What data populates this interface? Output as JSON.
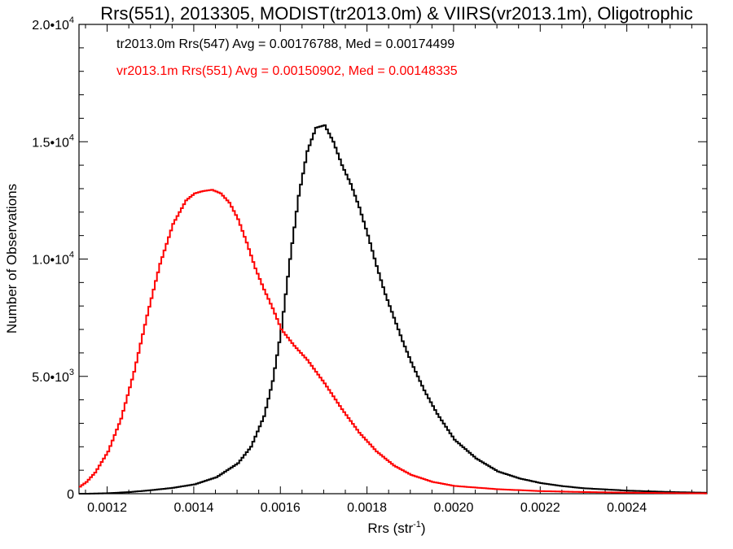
{
  "chart_data": {
    "type": "line",
    "title": "Rrs(551), 2013305, MODIST(tr2013.0m) & VIIRS(vr2013.1m), Oligotrophic",
    "xlabel": "Rrs (str",
    "xlabel_sup": "-1",
    "xlabel_tail": ")",
    "ylabel": "Number of Observations",
    "xlim": [
      0.001135,
      0.002585
    ],
    "ylim": [
      0,
      20000
    ],
    "x_ticks": [
      {
        "value": 0.0012,
        "label": "0.0012"
      },
      {
        "value": 0.0014,
        "label": "0.0014"
      },
      {
        "value": 0.0016,
        "label": "0.0016"
      },
      {
        "value": 0.0018,
        "label": "0.0018"
      },
      {
        "value": 0.002,
        "label": "0.0020"
      },
      {
        "value": 0.0022,
        "label": "0.0022"
      },
      {
        "value": 0.0024,
        "label": "0.0024"
      }
    ],
    "y_ticks": [
      {
        "value": 0,
        "mant": "0",
        "exp": ""
      },
      {
        "value": 5000,
        "mant": "5.0•10",
        "exp": "3"
      },
      {
        "value": 10000,
        "mant": "1.0•10",
        "exp": "4"
      },
      {
        "value": 15000,
        "mant": "1.5•10",
        "exp": "4"
      },
      {
        "value": 20000,
        "mant": "2.0•10",
        "exp": "4"
      }
    ],
    "annotations": [
      {
        "text": "tr2013.0m Rrs(547) Avg = 0.00176788, Med = 0.00174499",
        "color": "#000000"
      },
      {
        "text": "vr2013.1m Rrs(551) Avg = 0.00150902, Med = 0.00148335",
        "color": "#ff0000"
      }
    ],
    "grid": false,
    "series": [
      {
        "color": "#000000",
        "x": [
          0.00115,
          0.0012,
          0.00125,
          0.0013,
          0.00135,
          0.0014,
          0.00145,
          0.0015,
          0.00153,
          0.00156,
          0.00158,
          0.0016,
          0.00162,
          0.00164,
          0.00166,
          0.00168,
          0.0017,
          0.00172,
          0.00174,
          0.00176,
          0.00178,
          0.0018,
          0.00182,
          0.00184,
          0.00186,
          0.00188,
          0.0019,
          0.00193,
          0.00196,
          0.002,
          0.00205,
          0.0021,
          0.00215,
          0.0022,
          0.00225,
          0.0023,
          0.0024,
          0.0025,
          0.00258
        ],
        "values": [
          0,
          20,
          70,
          150,
          250,
          400,
          700,
          1300,
          2000,
          3300,
          4800,
          7000,
          10000,
          12700,
          14600,
          15600,
          15700,
          15000,
          14000,
          13200,
          12200,
          11000,
          9700,
          8500,
          7500,
          6500,
          5600,
          4400,
          3400,
          2300,
          1500,
          950,
          650,
          450,
          320,
          230,
          130,
          70,
          40
        ]
      },
      {
        "color": "#ff0000",
        "x": [
          0.001135,
          0.00115,
          0.00117,
          0.0012,
          0.00123,
          0.00126,
          0.00129,
          0.00132,
          0.00135,
          0.00138,
          0.0014,
          0.00142,
          0.00144,
          0.00146,
          0.00148,
          0.0015,
          0.00152,
          0.00154,
          0.00156,
          0.00158,
          0.0016,
          0.00163,
          0.00166,
          0.0017,
          0.00174,
          0.00178,
          0.00182,
          0.00186,
          0.0019,
          0.00195,
          0.002,
          0.0021,
          0.0022,
          0.0023,
          0.0024,
          0.0025,
          0.00258
        ],
        "values": [
          300,
          500,
          900,
          1800,
          3200,
          5200,
          7600,
          9800,
          11500,
          12500,
          12800,
          12900,
          12950,
          12800,
          12400,
          11700,
          10700,
          9600,
          8700,
          7900,
          7000,
          6300,
          5700,
          4700,
          3600,
          2600,
          1800,
          1200,
          800,
          500,
          330,
          190,
          110,
          70,
          45,
          25,
          15
        ]
      }
    ]
  }
}
